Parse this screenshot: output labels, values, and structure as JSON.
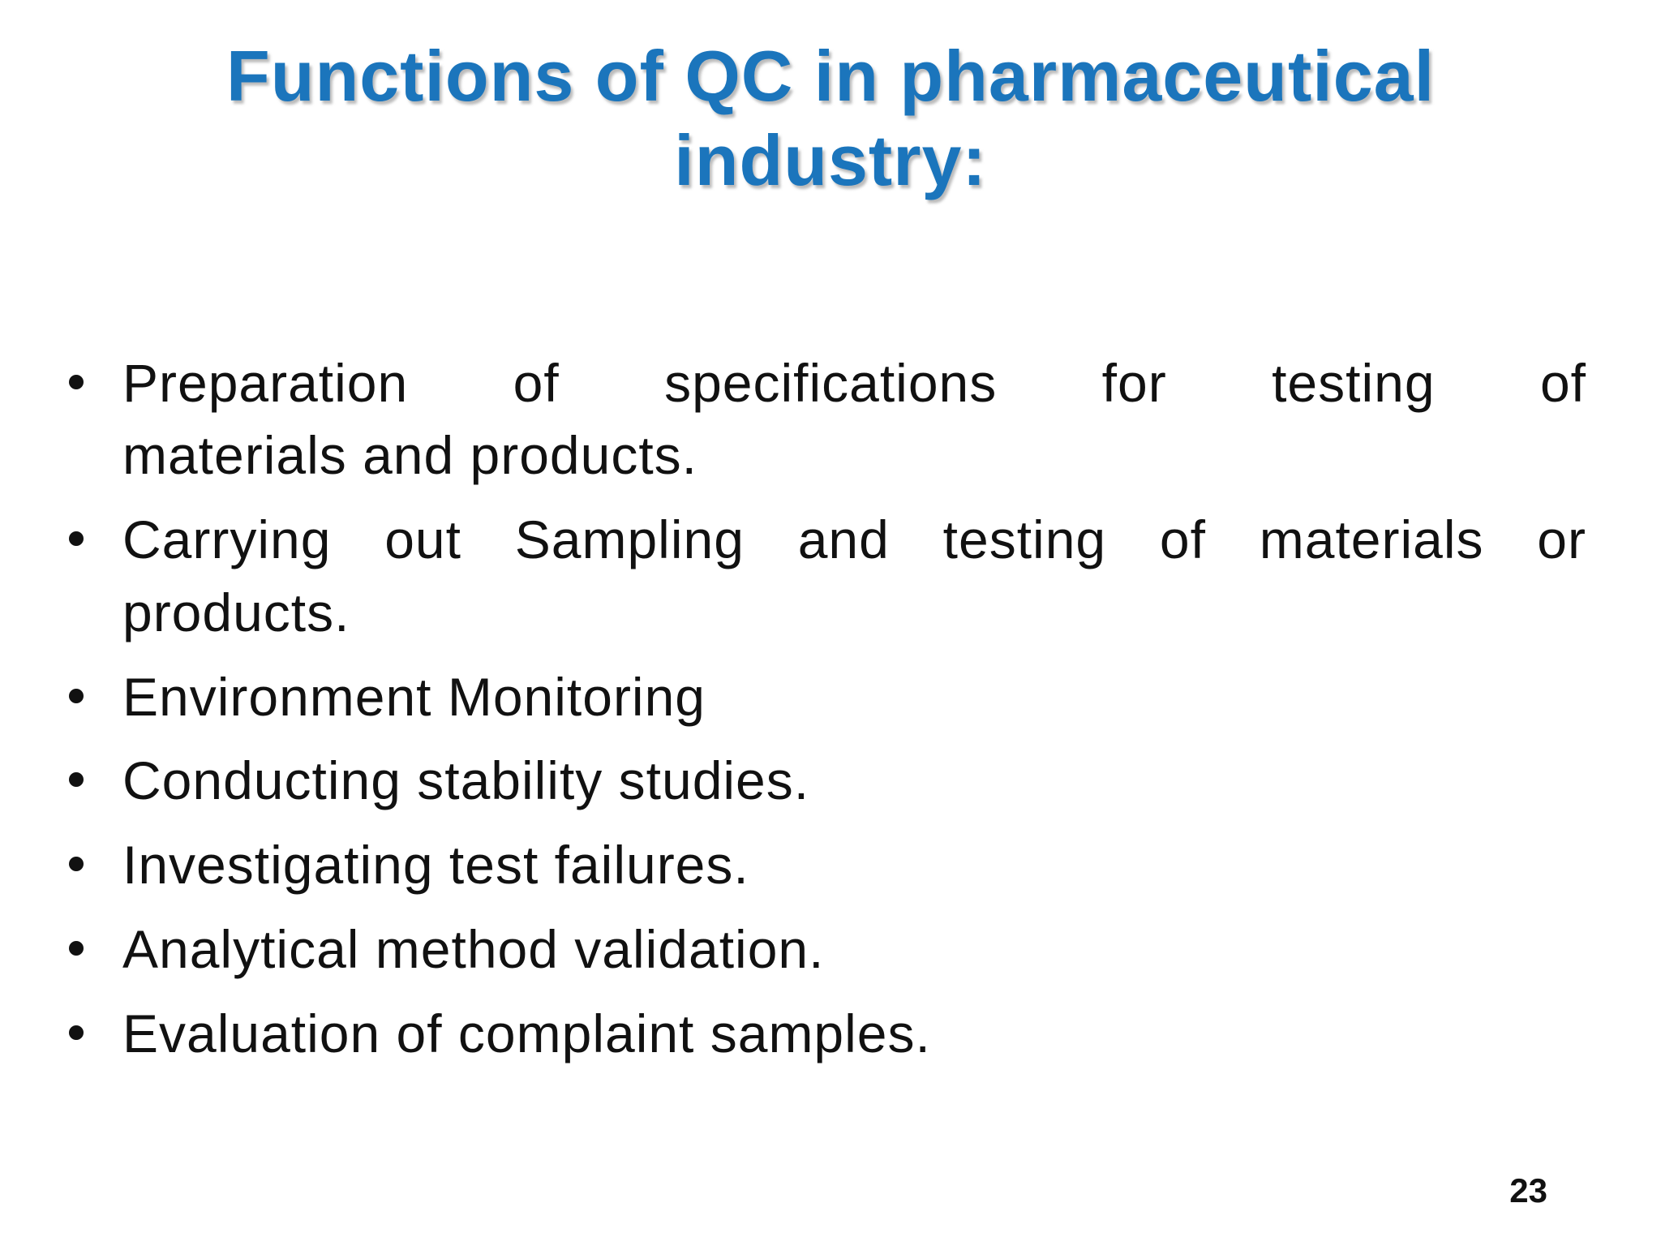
{
  "slide": {
    "title": {
      "line1": "Functions of QC in pharmaceutical",
      "line2": "industry:"
    },
    "bullets": [
      {
        "line1": "Preparation of specifications for testing of",
        "line2": "materials and products."
      },
      {
        "line1": "Carrying out Sampling and testing of materials or",
        "line2": "products."
      },
      {
        "line1": "Environment Monitoring"
      },
      {
        "line1": "Conducting stability studies."
      },
      {
        "line1": "Investigating test failures."
      },
      {
        "line1": "Analytical method validation."
      },
      {
        "line1": "Evaluation of complaint samples."
      }
    ],
    "page_number": "23",
    "colors": {
      "title_blue": "#1B75BC",
      "body_text": "#111111",
      "background": "#FFFFFF"
    }
  }
}
